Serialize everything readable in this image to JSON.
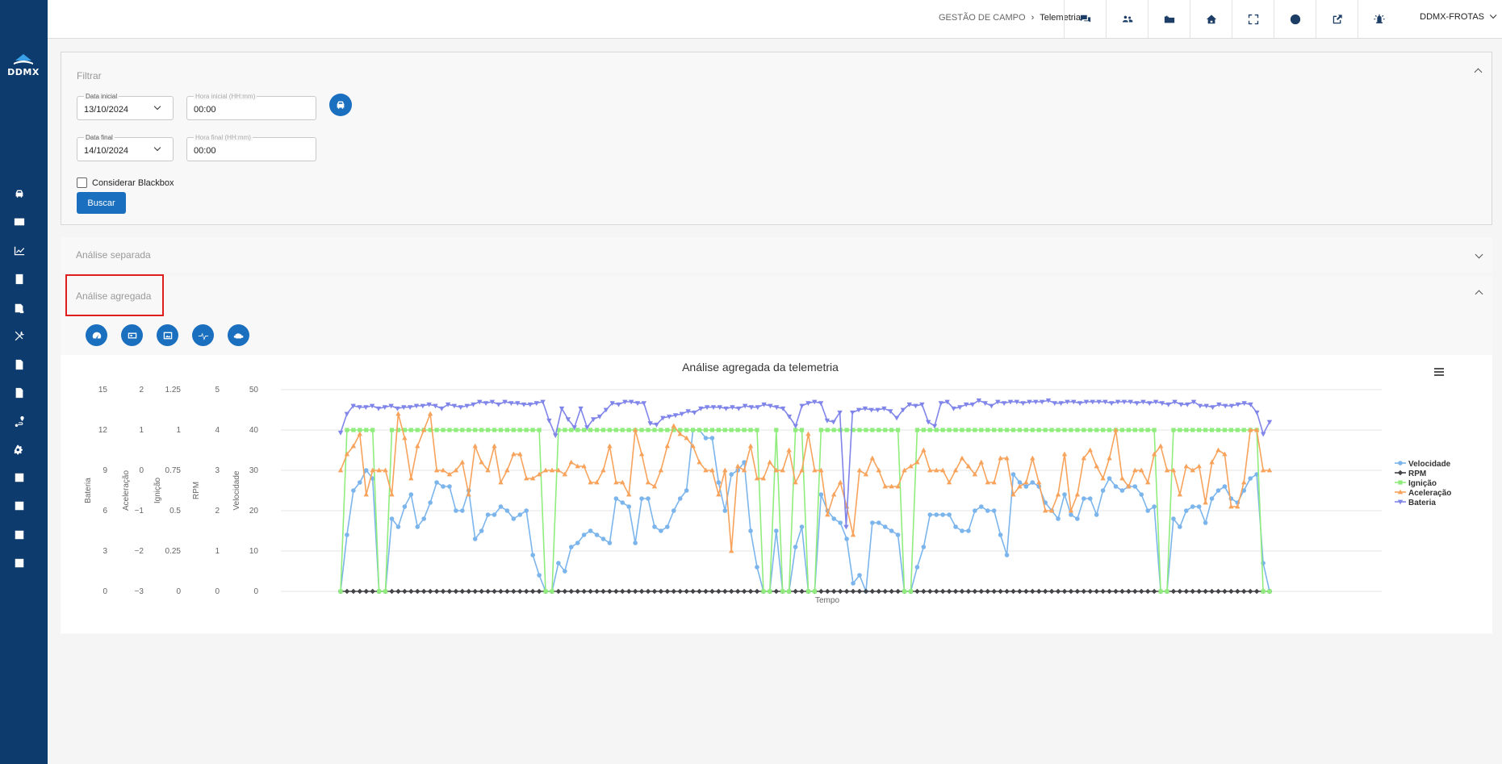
{
  "app": {
    "logo_text": "DDMX",
    "user": "DDMX-FROTAS"
  },
  "breadcrumb": {
    "parent": "GESTÃO DE CAMPO",
    "current": "Telemetria"
  },
  "topbar_icons": [
    "chat-icon",
    "users-icon",
    "folder-icon",
    "home-icon",
    "fullscreen-icon",
    "help-icon",
    "external-link-icon",
    "alarm-icon"
  ],
  "sidebar_icons": [
    "car-icon",
    "id-card-icon",
    "line-chart-icon",
    "report-icon",
    "document-icon",
    "tools-icon",
    "file-icon",
    "file-icon",
    "route-icon",
    "gears-icon",
    "list-icon",
    "list-icon",
    "list-icon",
    "list-icon"
  ],
  "filter": {
    "title": "Filtrar",
    "date_start_label": "Data inicial",
    "date_start": "13/10/2024",
    "time_start_label": "Hora inicial (HH:mm)",
    "time_start": "00:00",
    "date_end_label": "Data final",
    "date_end": "14/10/2024",
    "time_end_label": "Hora final (HH:mm)",
    "time_end": "00:00",
    "blackbox_label": "Considerar Blackbox",
    "search_label": "Buscar"
  },
  "sections": {
    "separate": "Análise separada",
    "aggregate": "Análise agregada"
  },
  "colors": {
    "velocidade": "#7cb5ec",
    "rpm": "#434348",
    "ignicao": "#90ed7d",
    "aceleracao": "#f7a35c",
    "bateria": "#8085e9",
    "primary": "#1a6fbf",
    "sidebar": "#0d3b6e"
  },
  "chart_data": {
    "type": "line",
    "title": "Análise agregada da telemetria",
    "xlabel": "Tempo",
    "axes": [
      {
        "label": "Velocidade",
        "ticks": [
          "0",
          "10",
          "20",
          "30",
          "40",
          "50"
        ],
        "range": [
          0,
          50
        ]
      },
      {
        "label": "RPM",
        "ticks": [
          "0",
          "1",
          "2",
          "3",
          "4",
          "5"
        ],
        "range": [
          0,
          5
        ]
      },
      {
        "label": "Ignição",
        "ticks": [
          "0",
          "0.25",
          "0.5",
          "0.75",
          "1",
          "1.25"
        ],
        "range": [
          0,
          1.25
        ]
      },
      {
        "label": "Aceleração",
        "ticks": [
          "−3",
          "−2",
          "−1",
          "0",
          "1",
          "2"
        ],
        "range": [
          -3,
          2
        ]
      },
      {
        "label": "Bateria",
        "ticks": [
          "0",
          "3",
          "6",
          "9",
          "12",
          "15"
        ],
        "range": [
          0,
          15
        ]
      }
    ],
    "legend_position": "right",
    "series": [
      {
        "name": "Velocidade",
        "axis": 0,
        "marker": "circle",
        "values": [
          0,
          14,
          25,
          27,
          30,
          28,
          0,
          0,
          18,
          16,
          21,
          24,
          16,
          18,
          22,
          27,
          26,
          26,
          20,
          20,
          25,
          13,
          15,
          19,
          19,
          21,
          20,
          18,
          19,
          20,
          9,
          4,
          0,
          0,
          7,
          5,
          11,
          12,
          14,
          15,
          14,
          13,
          12,
          23,
          22,
          21,
          12,
          23,
          23,
          16,
          15,
          16,
          20,
          23,
          25,
          40,
          40,
          38,
          38,
          27,
          20,
          29,
          30,
          32,
          15,
          6,
          0,
          0,
          15,
          0,
          0,
          11,
          16,
          0,
          0,
          24,
          20,
          18,
          17,
          13,
          2,
          4,
          0,
          17,
          17,
          16,
          15,
          14,
          0,
          0,
          6,
          11,
          19,
          19,
          19,
          19,
          16,
          15,
          15,
          20,
          21,
          20,
          20,
          14,
          9,
          29,
          27,
          26,
          27,
          26,
          22,
          20,
          18,
          24,
          19,
          18,
          23,
          23,
          19,
          25,
          28,
          26,
          25,
          26,
          26,
          24,
          20,
          21,
          0,
          0,
          18,
          16,
          20,
          21,
          21,
          17,
          23,
          25,
          26,
          23,
          22,
          25,
          28,
          29,
          7,
          0
        ]
      },
      {
        "name": "RPM",
        "axis": 1,
        "marker": "diamond",
        "values": [
          0,
          0,
          0,
          0,
          0,
          0,
          0,
          0,
          0,
          0,
          0,
          0,
          0,
          0,
          0,
          0,
          0,
          0,
          0,
          0,
          0,
          0,
          0,
          0,
          0,
          0,
          0,
          0,
          0,
          0,
          0,
          0,
          0,
          0,
          0,
          0,
          0,
          0,
          0,
          0,
          0,
          0,
          0,
          0,
          0,
          0,
          0,
          0,
          0,
          0,
          0,
          0,
          0,
          0,
          0,
          0,
          0,
          0,
          0,
          0,
          0,
          0,
          0,
          0,
          0,
          0,
          0,
          0,
          0,
          0,
          0,
          0,
          0,
          0,
          0,
          0,
          0,
          0,
          0,
          0,
          0,
          0,
          0,
          0,
          0,
          0,
          0,
          0,
          0,
          0,
          0,
          0,
          0,
          0,
          0,
          0,
          0,
          0,
          0,
          0,
          0,
          0,
          0,
          0,
          0,
          0,
          0,
          0,
          0,
          0,
          0,
          0,
          0,
          0,
          0,
          0,
          0,
          0,
          0,
          0,
          0,
          0,
          0,
          0,
          0,
          0,
          0,
          0,
          0,
          0,
          0,
          0,
          0,
          0,
          0,
          0,
          0,
          0,
          0,
          0,
          0,
          0,
          0,
          0,
          0,
          0
        ]
      },
      {
        "name": "Ignição",
        "axis": 2,
        "marker": "square",
        "values": [
          0,
          1,
          1,
          1,
          1,
          1,
          0,
          0,
          1,
          1,
          1,
          1,
          1,
          1,
          1,
          1,
          1,
          1,
          1,
          1,
          1,
          1,
          1,
          1,
          1,
          1,
          1,
          1,
          1,
          1,
          1,
          1,
          0,
          0,
          1,
          1,
          1,
          1,
          1,
          1,
          1,
          1,
          1,
          1,
          1,
          1,
          1,
          1,
          1,
          1,
          1,
          1,
          1,
          1,
          1,
          1,
          1,
          1,
          1,
          1,
          1,
          1,
          1,
          1,
          1,
          1,
          0,
          0,
          1,
          0,
          0,
          1,
          1,
          0,
          0,
          1,
          1,
          1,
          1,
          1,
          1,
          1,
          1,
          1,
          1,
          1,
          1,
          1,
          0,
          0,
          1,
          1,
          1,
          1,
          1,
          1,
          1,
          1,
          1,
          1,
          1,
          1,
          1,
          1,
          1,
          1,
          1,
          1,
          1,
          1,
          1,
          1,
          1,
          1,
          1,
          1,
          1,
          1,
          1,
          1,
          1,
          1,
          1,
          1,
          1,
          1,
          1,
          1,
          0,
          0,
          1,
          1,
          1,
          1,
          1,
          1,
          1,
          1,
          1,
          1,
          1,
          1,
          1,
          1,
          0,
          0
        ]
      },
      {
        "name": "Aceleração",
        "axis": 3,
        "marker": "triangle",
        "values": [
          0,
          0.4,
          0.6,
          0.9,
          -0.6,
          0,
          0,
          0,
          -0.6,
          1.4,
          0.8,
          -0.2,
          0.6,
          1,
          1.4,
          0,
          0,
          -0.1,
          0,
          0.2,
          -0.6,
          0.6,
          0.2,
          0,
          0.6,
          -0.3,
          0,
          0.4,
          0.4,
          -0.2,
          -0.2,
          -0.1,
          0,
          0,
          0,
          -0.1,
          0.2,
          0.1,
          0.1,
          -0.3,
          -0.3,
          0,
          0.6,
          -0.3,
          -0.3,
          -0.6,
          1,
          0.4,
          -0.3,
          -0.4,
          0,
          0.6,
          1.1,
          0.9,
          0.8,
          0.6,
          0.2,
          0,
          0,
          -0.6,
          0,
          -2,
          0.1,
          0,
          0.6,
          -0.2,
          -0.2,
          0.2,
          0,
          0,
          0.5,
          -0.3,
          0,
          0.9,
          0,
          0,
          -1.1,
          -0.6,
          -0.3,
          -0.9,
          -1.6,
          0,
          -0.1,
          0.3,
          0,
          -0.4,
          -0.4,
          -0.4,
          0,
          0.1,
          0.2,
          0.5,
          0,
          0,
          0,
          -0.3,
          0,
          0.3,
          0.1,
          -0.1,
          0.2,
          -0.3,
          -0.3,
          0.3,
          0.3,
          -0.6,
          -0.4,
          -0.3,
          0.3,
          -0.3,
          -1,
          -1,
          -0.6,
          0.4,
          -1,
          -0.6,
          0.3,
          0.5,
          0.1,
          -0.2,
          0.3,
          1,
          -0.2,
          -0.4,
          0,
          0,
          -0.3,
          0.4,
          0.6,
          0,
          0,
          -0.6,
          0.1,
          0,
          0.1,
          -0.8,
          0.2,
          0.5,
          0.4,
          -0.9,
          -0.9,
          -0.3,
          1,
          1,
          0,
          0
        ]
      },
      {
        "name": "Bateria",
        "axis": 4,
        "marker": "triangle-down",
        "values": [
          11.8,
          13.2,
          13.8,
          13.7,
          13.7,
          13.8,
          13.6,
          13.7,
          13.8,
          13.6,
          13.7,
          13.7,
          13.8,
          13.8,
          13.9,
          13.8,
          13.6,
          13.9,
          13.8,
          13.7,
          13.8,
          13.9,
          14.1,
          14,
          14.1,
          13.9,
          14.1,
          14,
          14,
          13.9,
          13.9,
          14,
          14.1,
          12.7,
          11.6,
          13.6,
          12.8,
          12.2,
          13.6,
          12.2,
          12.8,
          13,
          13.5,
          14,
          13.9,
          14.1,
          14.1,
          14,
          14,
          12.5,
          12.4,
          12.9,
          13,
          13.1,
          13.2,
          13.4,
          13.3,
          13.6,
          13.7,
          13.7,
          13.7,
          13.6,
          13.7,
          13.6,
          13.8,
          13.7,
          13.7,
          13.9,
          13.8,
          13.7,
          13.6,
          13,
          12.3,
          13.8,
          14,
          14.1,
          14,
          12.7,
          12.6,
          13.3,
          4.8,
          13.3,
          13.5,
          13.6,
          13.5,
          13.5,
          13.6,
          13.4,
          12.9,
          13.5,
          13.9,
          13.8,
          13.9,
          12.6,
          12.3,
          14,
          14.1,
          13.6,
          13.7,
          13.9,
          13.9,
          14.2,
          14,
          13.8,
          14.1,
          14,
          14.1,
          14.1,
          14,
          14.1,
          14.1,
          14.1,
          14.2,
          14,
          14,
          14.1,
          14.1,
          14,
          14.1,
          14.1,
          14.1,
          14.1,
          14,
          14.1,
          14.1,
          14.1,
          14,
          14.1,
          14,
          14.1,
          14,
          13.9,
          14.1,
          13.9,
          13.9,
          14.1,
          13.8,
          13.8,
          13.7,
          13.9,
          13.8,
          13.8,
          13.9,
          14,
          13.9,
          13.3,
          11.7,
          12.6
        ]
      }
    ]
  }
}
